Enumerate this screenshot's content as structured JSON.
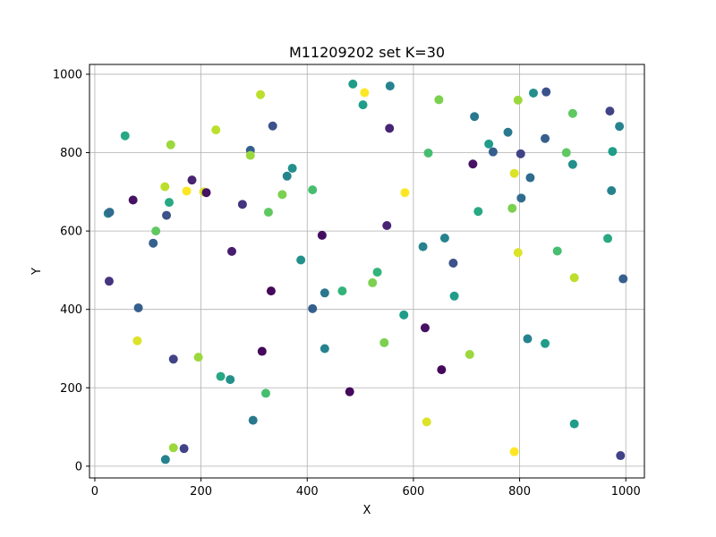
{
  "chart_data": {
    "type": "scatter",
    "title": "M11209202 set K=30",
    "xlabel": "X",
    "ylabel": "Y",
    "xlim": [
      -10,
      1035
    ],
    "ylim": [
      -30,
      1025
    ],
    "xticks": [
      0,
      200,
      400,
      600,
      800,
      1000
    ],
    "yticks": [
      0,
      200,
      400,
      600,
      800,
      1000
    ],
    "grid": true,
    "colormap": "viridis",
    "points": [
      {
        "x": 25,
        "y": 645,
        "c": 0.45
      },
      {
        "x": 28,
        "y": 648,
        "c": 0.35
      },
      {
        "x": 27,
        "y": 472,
        "c": 0.15
      },
      {
        "x": 57,
        "y": 843,
        "c": 0.6
      },
      {
        "x": 72,
        "y": 679,
        "c": 0.05
      },
      {
        "x": 80,
        "y": 320,
        "c": 0.95
      },
      {
        "x": 82,
        "y": 404,
        "c": 0.3
      },
      {
        "x": 110,
        "y": 569,
        "c": 0.3
      },
      {
        "x": 115,
        "y": 600,
        "c": 0.75
      },
      {
        "x": 132,
        "y": 713,
        "c": 0.9
      },
      {
        "x": 135,
        "y": 640,
        "c": 0.25
      },
      {
        "x": 140,
        "y": 673,
        "c": 0.6
      },
      {
        "x": 143,
        "y": 820,
        "c": 0.85
      },
      {
        "x": 148,
        "y": 273,
        "c": 0.2
      },
      {
        "x": 148,
        "y": 47,
        "c": 0.85
      },
      {
        "x": 133,
        "y": 17,
        "c": 0.45
      },
      {
        "x": 168,
        "y": 45,
        "c": 0.2
      },
      {
        "x": 173,
        "y": 702,
        "c": 1.0
      },
      {
        "x": 183,
        "y": 730,
        "c": 0.1
      },
      {
        "x": 195,
        "y": 278,
        "c": 0.85
      },
      {
        "x": 205,
        "y": 700,
        "c": 0.95
      },
      {
        "x": 210,
        "y": 698,
        "c": 0.05
      },
      {
        "x": 228,
        "y": 858,
        "c": 0.9
      },
      {
        "x": 237,
        "y": 229,
        "c": 0.6
      },
      {
        "x": 255,
        "y": 221,
        "c": 0.5
      },
      {
        "x": 258,
        "y": 548,
        "c": 0.08
      },
      {
        "x": 278,
        "y": 668,
        "c": 0.15
      },
      {
        "x": 293,
        "y": 806,
        "c": 0.3
      },
      {
        "x": 293,
        "y": 793,
        "c": 0.85
      },
      {
        "x": 298,
        "y": 117,
        "c": 0.4
      },
      {
        "x": 312,
        "y": 948,
        "c": 0.9
      },
      {
        "x": 315,
        "y": 293,
        "c": 0.02
      },
      {
        "x": 322,
        "y": 186,
        "c": 0.7
      },
      {
        "x": 327,
        "y": 648,
        "c": 0.75
      },
      {
        "x": 332,
        "y": 447,
        "c": 0.02
      },
      {
        "x": 335,
        "y": 868,
        "c": 0.25
      },
      {
        "x": 353,
        "y": 693,
        "c": 0.8
      },
      {
        "x": 362,
        "y": 740,
        "c": 0.45
      },
      {
        "x": 372,
        "y": 760,
        "c": 0.5
      },
      {
        "x": 388,
        "y": 526,
        "c": 0.5
      },
      {
        "x": 410,
        "y": 402,
        "c": 0.3
      },
      {
        "x": 410,
        "y": 705,
        "c": 0.7
      },
      {
        "x": 428,
        "y": 589,
        "c": 0.03
      },
      {
        "x": 433,
        "y": 442,
        "c": 0.4
      },
      {
        "x": 433,
        "y": 300,
        "c": 0.45
      },
      {
        "x": 466,
        "y": 447,
        "c": 0.65
      },
      {
        "x": 480,
        "y": 190,
        "c": 0.02
      },
      {
        "x": 486,
        "y": 975,
        "c": 0.55
      },
      {
        "x": 505,
        "y": 922,
        "c": 0.55
      },
      {
        "x": 508,
        "y": 953,
        "c": 1.0
      },
      {
        "x": 523,
        "y": 468,
        "c": 0.8
      },
      {
        "x": 532,
        "y": 495,
        "c": 0.65
      },
      {
        "x": 545,
        "y": 315,
        "c": 0.8
      },
      {
        "x": 550,
        "y": 614,
        "c": 0.1
      },
      {
        "x": 555,
        "y": 862,
        "c": 0.1
      },
      {
        "x": 556,
        "y": 970,
        "c": 0.45
      },
      {
        "x": 582,
        "y": 386,
        "c": 0.55
      },
      {
        "x": 584,
        "y": 698,
        "c": 1.0
      },
      {
        "x": 618,
        "y": 560,
        "c": 0.45
      },
      {
        "x": 622,
        "y": 353,
        "c": 0.05
      },
      {
        "x": 625,
        "y": 113,
        "c": 0.95
      },
      {
        "x": 628,
        "y": 799,
        "c": 0.7
      },
      {
        "x": 648,
        "y": 935,
        "c": 0.8
      },
      {
        "x": 653,
        "y": 246,
        "c": 0.02
      },
      {
        "x": 659,
        "y": 582,
        "c": 0.45
      },
      {
        "x": 675,
        "y": 518,
        "c": 0.25
      },
      {
        "x": 677,
        "y": 434,
        "c": 0.55
      },
      {
        "x": 706,
        "y": 285,
        "c": 0.85
      },
      {
        "x": 712,
        "y": 771,
        "c": 0.05
      },
      {
        "x": 715,
        "y": 892,
        "c": 0.4
      },
      {
        "x": 722,
        "y": 650,
        "c": 0.6
      },
      {
        "x": 742,
        "y": 822,
        "c": 0.55
      },
      {
        "x": 750,
        "y": 802,
        "c": 0.3
      },
      {
        "x": 778,
        "y": 852,
        "c": 0.4
      },
      {
        "x": 786,
        "y": 658,
        "c": 0.8
      },
      {
        "x": 790,
        "y": 747,
        "c": 0.95
      },
      {
        "x": 790,
        "y": 37,
        "c": 1.0
      },
      {
        "x": 797,
        "y": 934,
        "c": 0.85
      },
      {
        "x": 797,
        "y": 545,
        "c": 0.95
      },
      {
        "x": 802,
        "y": 797,
        "c": 0.2
      },
      {
        "x": 803,
        "y": 684,
        "c": 0.35
      },
      {
        "x": 815,
        "y": 325,
        "c": 0.45
      },
      {
        "x": 820,
        "y": 736,
        "c": 0.35
      },
      {
        "x": 826,
        "y": 952,
        "c": 0.5
      },
      {
        "x": 848,
        "y": 313,
        "c": 0.55
      },
      {
        "x": 848,
        "y": 836,
        "c": 0.3
      },
      {
        "x": 850,
        "y": 955,
        "c": 0.25
      },
      {
        "x": 871,
        "y": 549,
        "c": 0.7
      },
      {
        "x": 888,
        "y": 800,
        "c": 0.75
      },
      {
        "x": 900,
        "y": 770,
        "c": 0.5
      },
      {
        "x": 900,
        "y": 900,
        "c": 0.75
      },
      {
        "x": 903,
        "y": 481,
        "c": 0.9
      },
      {
        "x": 903,
        "y": 108,
        "c": 0.55
      },
      {
        "x": 966,
        "y": 581,
        "c": 0.6
      },
      {
        "x": 970,
        "y": 906,
        "c": 0.2
      },
      {
        "x": 973,
        "y": 703,
        "c": 0.45
      },
      {
        "x": 975,
        "y": 803,
        "c": 0.55
      },
      {
        "x": 988,
        "y": 867,
        "c": 0.45
      },
      {
        "x": 990,
        "y": 27,
        "c": 0.2
      },
      {
        "x": 995,
        "y": 478,
        "c": 0.3
      }
    ]
  }
}
